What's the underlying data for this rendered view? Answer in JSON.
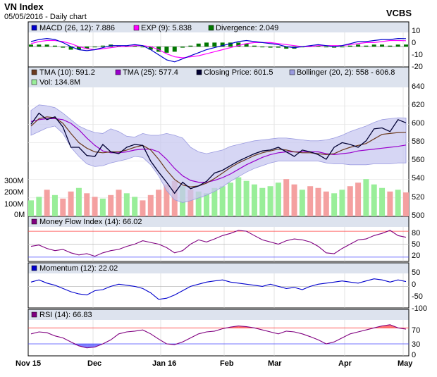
{
  "header": {
    "title": "VN Index",
    "subtitle": "05/05/2016 - Daily chart",
    "brand": "VCBS"
  },
  "colors": {
    "macd": "#0000cc",
    "exp": "#ff00ff",
    "divergence": "#007700",
    "tma10": "#6b3a1e",
    "tma25": "#9900cc",
    "close": "#000033",
    "bollinger_fill": "#c8c8f0",
    "bollinger_edge": "#9b9be0",
    "vol_up": "#99ee99",
    "vol_down": "#f4a0a0",
    "mfi": "#800080",
    "momentum": "#0000cc",
    "rsi": "#800080",
    "overbought_line": "#ff4444",
    "oversold_line": "#4444ff",
    "overbought_fill": "#ff5050",
    "oversold_fill": "#6060ff"
  },
  "xaxis": {
    "labels": [
      "Nov 15",
      "Dec",
      "Jan 16",
      "Feb",
      "Mar",
      "Apr",
      "May"
    ]
  },
  "panels": {
    "macd": {
      "legend": [
        {
          "label": "MACD (26, 12): 7.886",
          "color": "#0000cc"
        },
        {
          "label": "EXP (9): 5.838",
          "color": "#ff00ff"
        },
        {
          "label": "Divergence: 2.049",
          "color": "#007700"
        }
      ],
      "ticks": [
        "10",
        "0",
        "-10",
        "-20"
      ]
    },
    "price": {
      "legend": [
        {
          "label": "TMA (10): 591.2",
          "color": "#6b3a1e"
        },
        {
          "label": "TMA (25): 577.4",
          "color": "#9900cc"
        },
        {
          "label": "Closing Price: 601.5",
          "color": "#000033"
        },
        {
          "label": "Bollinger (20, 2): 558 - 606.8",
          "color": "#9b9be0"
        },
        {
          "label": "Vol: 134.8M",
          "color": "#99ee99"
        }
      ],
      "ticks": [
        "640",
        "620",
        "600",
        "580",
        "560",
        "540",
        "520",
        "500"
      ],
      "vol_ticks": [
        "300M",
        "200M",
        "100M",
        "0M"
      ]
    },
    "mfi": {
      "legend": [
        {
          "label": "Money Flow Index (14): 66.02",
          "color": "#800080"
        }
      ],
      "ticks": [
        "80",
        "50",
        "20"
      ]
    },
    "momentum": {
      "legend": [
        {
          "label": "Momentum (12): 22.02",
          "color": "#0000cc"
        }
      ],
      "ticks": [
        "50",
        "0",
        "-50",
        "-100"
      ]
    },
    "rsi": {
      "legend": [
        {
          "label": "RSI (14): 66.83",
          "color": "#800080"
        }
      ],
      "ticks": [
        "70",
        "30",
        "0"
      ]
    }
  },
  "chart_data": {
    "type": "line",
    "x_months": [
      "Nov 15",
      "Dec",
      "Jan 16",
      "Feb",
      "Mar",
      "Apr",
      "May"
    ],
    "close_anchor_values": [
      600,
      612,
      605,
      608,
      597,
      575,
      575,
      566,
      565,
      578,
      570,
      568,
      575,
      578,
      577,
      560,
      548,
      537,
      525,
      537,
      530,
      533,
      538,
      547,
      550,
      555,
      560,
      564,
      568,
      571,
      572,
      575,
      570,
      565,
      572,
      570,
      567,
      562,
      575,
      580,
      578,
      575,
      582,
      595,
      596,
      592,
      605,
      601.5
    ],
    "tma10_anchor_values": [
      598,
      606,
      608,
      607,
      601,
      590,
      580,
      574,
      570,
      569,
      570,
      570,
      572,
      575,
      577,
      572,
      562,
      550,
      540,
      534,
      532,
      533,
      536,
      541,
      547,
      553,
      558,
      562,
      566,
      569,
      571,
      573,
      572,
      570,
      569,
      569,
      568,
      567,
      568,
      572,
      575,
      577,
      579,
      584,
      589,
      590,
      591,
      591.2
    ],
    "tma25_anchor_values": [
      603,
      605,
      606,
      606,
      605,
      601,
      594,
      585,
      577,
      571,
      569,
      569,
      570,
      572,
      573,
      573,
      570,
      562,
      552,
      544,
      539,
      537,
      537,
      539,
      542,
      546,
      551,
      556,
      560,
      564,
      567,
      569,
      570,
      570,
      570,
      570,
      570,
      568,
      567,
      568,
      569,
      571,
      572,
      573,
      574,
      575,
      576,
      577.4
    ],
    "bollinger_upper_anchor_values": [
      615,
      621,
      620,
      618,
      612,
      605,
      598,
      594,
      591,
      590,
      595,
      592,
      587,
      586,
      590,
      588,
      588,
      590,
      588,
      585,
      575,
      570,
      568,
      570,
      572,
      576,
      578,
      580,
      582,
      583,
      584,
      585,
      585,
      584,
      583,
      582,
      582,
      583,
      585,
      588,
      592,
      595,
      598,
      602,
      605,
      606,
      607,
      606.8
    ],
    "bollinger_lower_anchor_values": [
      588,
      592,
      596,
      598,
      590,
      575,
      565,
      557,
      554,
      555,
      558,
      560,
      562,
      565,
      564,
      556,
      544,
      528,
      518,
      515,
      517,
      520,
      523,
      527,
      532,
      538,
      543,
      548,
      552,
      555,
      558,
      560,
      560,
      560,
      560,
      560,
      560,
      558,
      557,
      557,
      556,
      556,
      556,
      557,
      557,
      557,
      558,
      558
    ],
    "macd_anchor_values": [
      5,
      7,
      8,
      7,
      4,
      0,
      -3,
      -4,
      -3,
      -1,
      1,
      1,
      1,
      2,
      1,
      -3,
      -8,
      -13,
      -15,
      -12,
      -9,
      -6,
      -3,
      -1,
      1,
      3,
      5,
      6,
      5,
      4,
      3,
      2,
      0,
      -1,
      0,
      1,
      2,
      1,
      0,
      1,
      3,
      5,
      5,
      6,
      7,
      7,
      8,
      7.886
    ],
    "exp_anchor_values": [
      3,
      5,
      6,
      6,
      5,
      3,
      0,
      -2,
      -3,
      -2,
      -1,
      0,
      0,
      1,
      1,
      0,
      -3,
      -7,
      -10,
      -11,
      -10,
      -9,
      -7,
      -5,
      -3,
      -1,
      1,
      3,
      4,
      4,
      4,
      3,
      2,
      1,
      0,
      0,
      1,
      1,
      1,
      1,
      2,
      3,
      4,
      4,
      5,
      6,
      6,
      5.838
    ],
    "mfi_anchor_values": [
      45,
      48,
      40,
      35,
      38,
      30,
      25,
      28,
      22,
      30,
      35,
      38,
      45,
      50,
      58,
      54,
      50,
      42,
      30,
      35,
      50,
      60,
      55,
      62,
      70,
      75,
      82,
      80,
      70,
      60,
      55,
      50,
      58,
      62,
      60,
      55,
      45,
      30,
      28,
      40,
      50,
      60,
      62,
      70,
      75,
      82,
      70,
      66.02
    ],
    "momentum_anchor_values": [
      20,
      30,
      15,
      5,
      -10,
      -25,
      -35,
      -40,
      -20,
      -15,
      0,
      10,
      5,
      0,
      -10,
      -30,
      -60,
      -55,
      -40,
      -20,
      0,
      10,
      20,
      25,
      30,
      20,
      15,
      10,
      5,
      0,
      10,
      0,
      -10,
      -5,
      -15,
      0,
      10,
      15,
      20,
      25,
      20,
      15,
      25,
      35,
      30,
      20,
      30,
      22.02
    ],
    "rsi_anchor_values": [
      55,
      60,
      58,
      50,
      45,
      35,
      25,
      20,
      22,
      30,
      40,
      55,
      60,
      62,
      65,
      55,
      42,
      30,
      28,
      35,
      45,
      55,
      60,
      62,
      68,
      72,
      75,
      73,
      70,
      65,
      60,
      55,
      62,
      60,
      55,
      48,
      40,
      30,
      35,
      45,
      55,
      60,
      65,
      70,
      75,
      78,
      70,
      66.83
    ],
    "volume_anchor_values_m": [
      90,
      110,
      150,
      120,
      100,
      140,
      160,
      130,
      110,
      100,
      120,
      150,
      130,
      110,
      90,
      120,
      150,
      180,
      200,
      170,
      150,
      140,
      130,
      160,
      170,
      190,
      220,
      200,
      180,
      160,
      170,
      190,
      210,
      180,
      150,
      170,
      160,
      140,
      130,
      150,
      170,
      190,
      210,
      180,
      160,
      140,
      150,
      134.8
    ],
    "ranges": {
      "price": [
        500,
        640
      ],
      "macd": [
        -20,
        14
      ],
      "mfi": [
        10,
        90
      ],
      "momentum": [
        -100,
        60
      ],
      "rsi": [
        0,
        90
      ],
      "volume_m": [
        0,
        400
      ]
    }
  }
}
